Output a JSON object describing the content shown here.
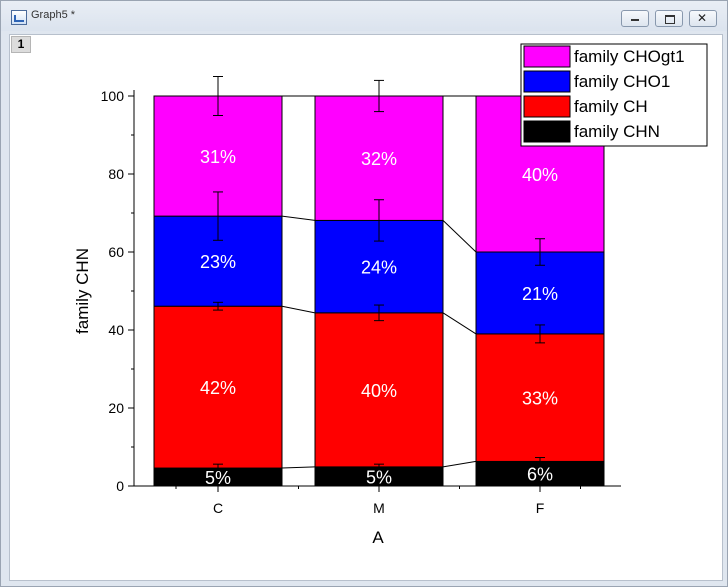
{
  "window": {
    "title": "Graph5 *",
    "layer_label": "1",
    "buttons": {
      "minimize": "minimize-icon",
      "maximize": "maximize-icon",
      "close": "close-icon"
    }
  },
  "chart_data": {
    "type": "bar",
    "stacked": true,
    "title": "",
    "xlabel": "A",
    "ylabel": "family CHN",
    "ylim": [
      0,
      100
    ],
    "yticks": [
      0,
      20,
      40,
      60,
      80,
      100
    ],
    "categories": [
      "C",
      "M",
      "F"
    ],
    "grid": false,
    "legend_position": "top-right",
    "connecting_lines": true,
    "series": [
      {
        "name": "family CHN",
        "color": "#000000",
        "label_color": "#ffffff",
        "values": [
          4.6,
          4.9,
          6.3
        ],
        "labels": [
          "5%",
          "5%",
          "6%"
        ],
        "errors": [
          1.0,
          0.7,
          1.0
        ]
      },
      {
        "name": "family CH",
        "color": "#ff0000",
        "label_color": "#ffffff",
        "values": [
          41.5,
          39.5,
          32.7
        ],
        "labels": [
          "42%",
          "40%",
          "33%"
        ],
        "errors": [
          1.0,
          2.0,
          2.3
        ]
      },
      {
        "name": "family CHO1",
        "color": "#0000ff",
        "label_color": "#ffffff",
        "values": [
          23.1,
          23.7,
          21.0
        ],
        "labels": [
          "23%",
          "24%",
          "21%"
        ],
        "errors": [
          6.2,
          5.3,
          3.4
        ]
      },
      {
        "name": "family CHOgt1",
        "color": "#ff00ff",
        "label_color": "#ffffff",
        "values": [
          30.8,
          31.9,
          40.0
        ],
        "labels": [
          "31%",
          "32%",
          "40%"
        ],
        "errors": [
          5.0,
          4.0,
          0
        ]
      }
    ]
  }
}
